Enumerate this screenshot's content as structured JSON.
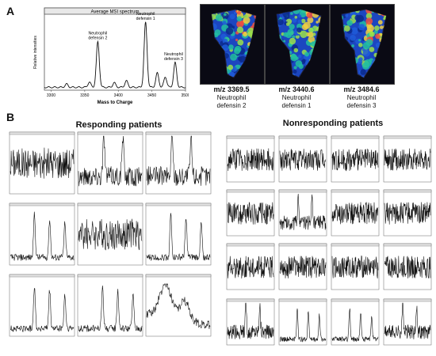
{
  "panels": {
    "a_letter": "A",
    "b_letter": "B"
  },
  "chart_data": [
    {
      "type": "line",
      "title": "Average MSI spectrum",
      "xlabel": "Mass to Charge",
      "ylabel": "Relative intensities",
      "xlim": [
        3290,
        3500
      ],
      "x_ticks": [
        3300,
        3350,
        3400,
        3450,
        3500
      ],
      "peaks": [
        {
          "x": 3369.5,
          "y": 0.7,
          "label": "Neutrophil defensin 2"
        },
        {
          "x": 3440.6,
          "y": 1.0,
          "label": "Neutrophil defensin 1"
        },
        {
          "x": 3484.6,
          "y": 0.38,
          "label": "Neutrophil defensin 3"
        }
      ],
      "small_peaks": [
        {
          "x": 3323,
          "y": 0.05
        },
        {
          "x": 3357,
          "y": 0.08
        },
        {
          "x": 3394,
          "y": 0.07
        },
        {
          "x": 3412,
          "y": 0.1
        },
        {
          "x": 3458,
          "y": 0.22
        },
        {
          "x": 3470,
          "y": 0.16
        }
      ]
    }
  ],
  "msi_images": [
    {
      "mz": "m/z 3369.5",
      "name_line1": "Neutrophil",
      "name_line2": "defensin 2"
    },
    {
      "mz": "m/z 3440.6",
      "name_line1": "Neutrophil",
      "name_line2": "defensin 1"
    },
    {
      "mz": "m/z 3484.6",
      "name_line1": "Neutrophil",
      "name_line2": "defensin 3"
    }
  ],
  "groups": {
    "responding": {
      "title": "Responding patients"
    },
    "nonresponding": {
      "title": "Nonresponding patients"
    }
  },
  "responding_spectra_count": 9,
  "nonresponding_spectra_count": 16,
  "colors": {
    "line": "#111111",
    "msi_low": "#0b2a8c",
    "msi_mid": "#22c0a0",
    "msi_high": "#f05040"
  }
}
